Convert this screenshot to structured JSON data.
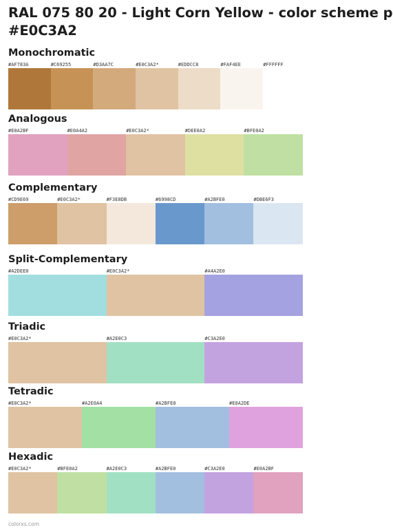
{
  "page": {
    "title_line1": "RAL 075 80 20 - Light Corn Yellow - color scheme p",
    "title_line2": "#E0C3A2",
    "footer": "colorxs.com"
  },
  "schemes": [
    {
      "name": "Monochromatic",
      "colors": [
        {
          "label": "#AF783A",
          "hex": "#AF783A"
        },
        {
          "label": "#C69255",
          "hex": "#C69255"
        },
        {
          "label": "#D3AA7C",
          "hex": "#D3AA7C"
        },
        {
          "label": "#E0C3A2*",
          "hex": "#E0C3A2"
        },
        {
          "label": "#EDDCC8",
          "hex": "#EDDCC8"
        },
        {
          "label": "#FAF4EE",
          "hex": "#FAF4EE"
        },
        {
          "label": "#FFFFFF",
          "hex": "#FFFFFF"
        }
      ]
    },
    {
      "name": "Analogous",
      "colors": [
        {
          "label": "#E0A2BF",
          "hex": "#E0A2BF"
        },
        {
          "label": "#E0A4A2",
          "hex": "#E0A4A2"
        },
        {
          "label": "#E0C3A2*",
          "hex": "#E0C3A2"
        },
        {
          "label": "#DEE0A2",
          "hex": "#DEE0A2"
        },
        {
          "label": "#BFE0A2",
          "hex": "#BFE0A2"
        }
      ]
    },
    {
      "name": "Complementary",
      "colors": [
        {
          "label": "#CD9E69",
          "hex": "#CD9E69"
        },
        {
          "label": "#E0C3A2*",
          "hex": "#E0C3A2"
        },
        {
          "label": "#F3E8DB",
          "hex": "#F3E8DB"
        },
        {
          "label": "#6998CD",
          "hex": "#6998CD"
        },
        {
          "label": "#A2BFE0",
          "hex": "#A2BFE0"
        },
        {
          "label": "#DBE6F3",
          "hex": "#DBE6F3"
        }
      ]
    },
    {
      "name": "Split-Complementary",
      "colors": [
        {
          "label": "#A2DEE0",
          "hex": "#A2DEE0"
        },
        {
          "label": "#E0C3A2*",
          "hex": "#E0C3A2"
        },
        {
          "label": "#A4A2E0",
          "hex": "#A4A2E0"
        }
      ]
    },
    {
      "name": "Triadic",
      "colors": [
        {
          "label": "#E0C3A2*",
          "hex": "#E0C3A2"
        },
        {
          "label": "#A2E0C3",
          "hex": "#A2E0C3"
        },
        {
          "label": "#C3A2E0",
          "hex": "#C3A2E0"
        }
      ]
    },
    {
      "name": "Tetradic",
      "colors": [
        {
          "label": "#E0C3A2*",
          "hex": "#E0C3A2"
        },
        {
          "label": "#A2E0A4",
          "hex": "#A2E0A4"
        },
        {
          "label": "#A2BFE0",
          "hex": "#A2BFE0"
        },
        {
          "label": "#E0A2DE",
          "hex": "#E0A2DE"
        }
      ]
    },
    {
      "name": "Hexadic",
      "colors": [
        {
          "label": "#E0C3A2*",
          "hex": "#E0C3A2"
        },
        {
          "label": "#BFE0A2",
          "hex": "#BFE0A2"
        },
        {
          "label": "#A2E0C3",
          "hex": "#A2E0C3"
        },
        {
          "label": "#A2BFE0",
          "hex": "#A2BFE0"
        },
        {
          "label": "#C3A2E0",
          "hex": "#C3A2E0"
        },
        {
          "label": "#E0A2BF",
          "hex": "#E0A2BF"
        }
      ]
    }
  ]
}
